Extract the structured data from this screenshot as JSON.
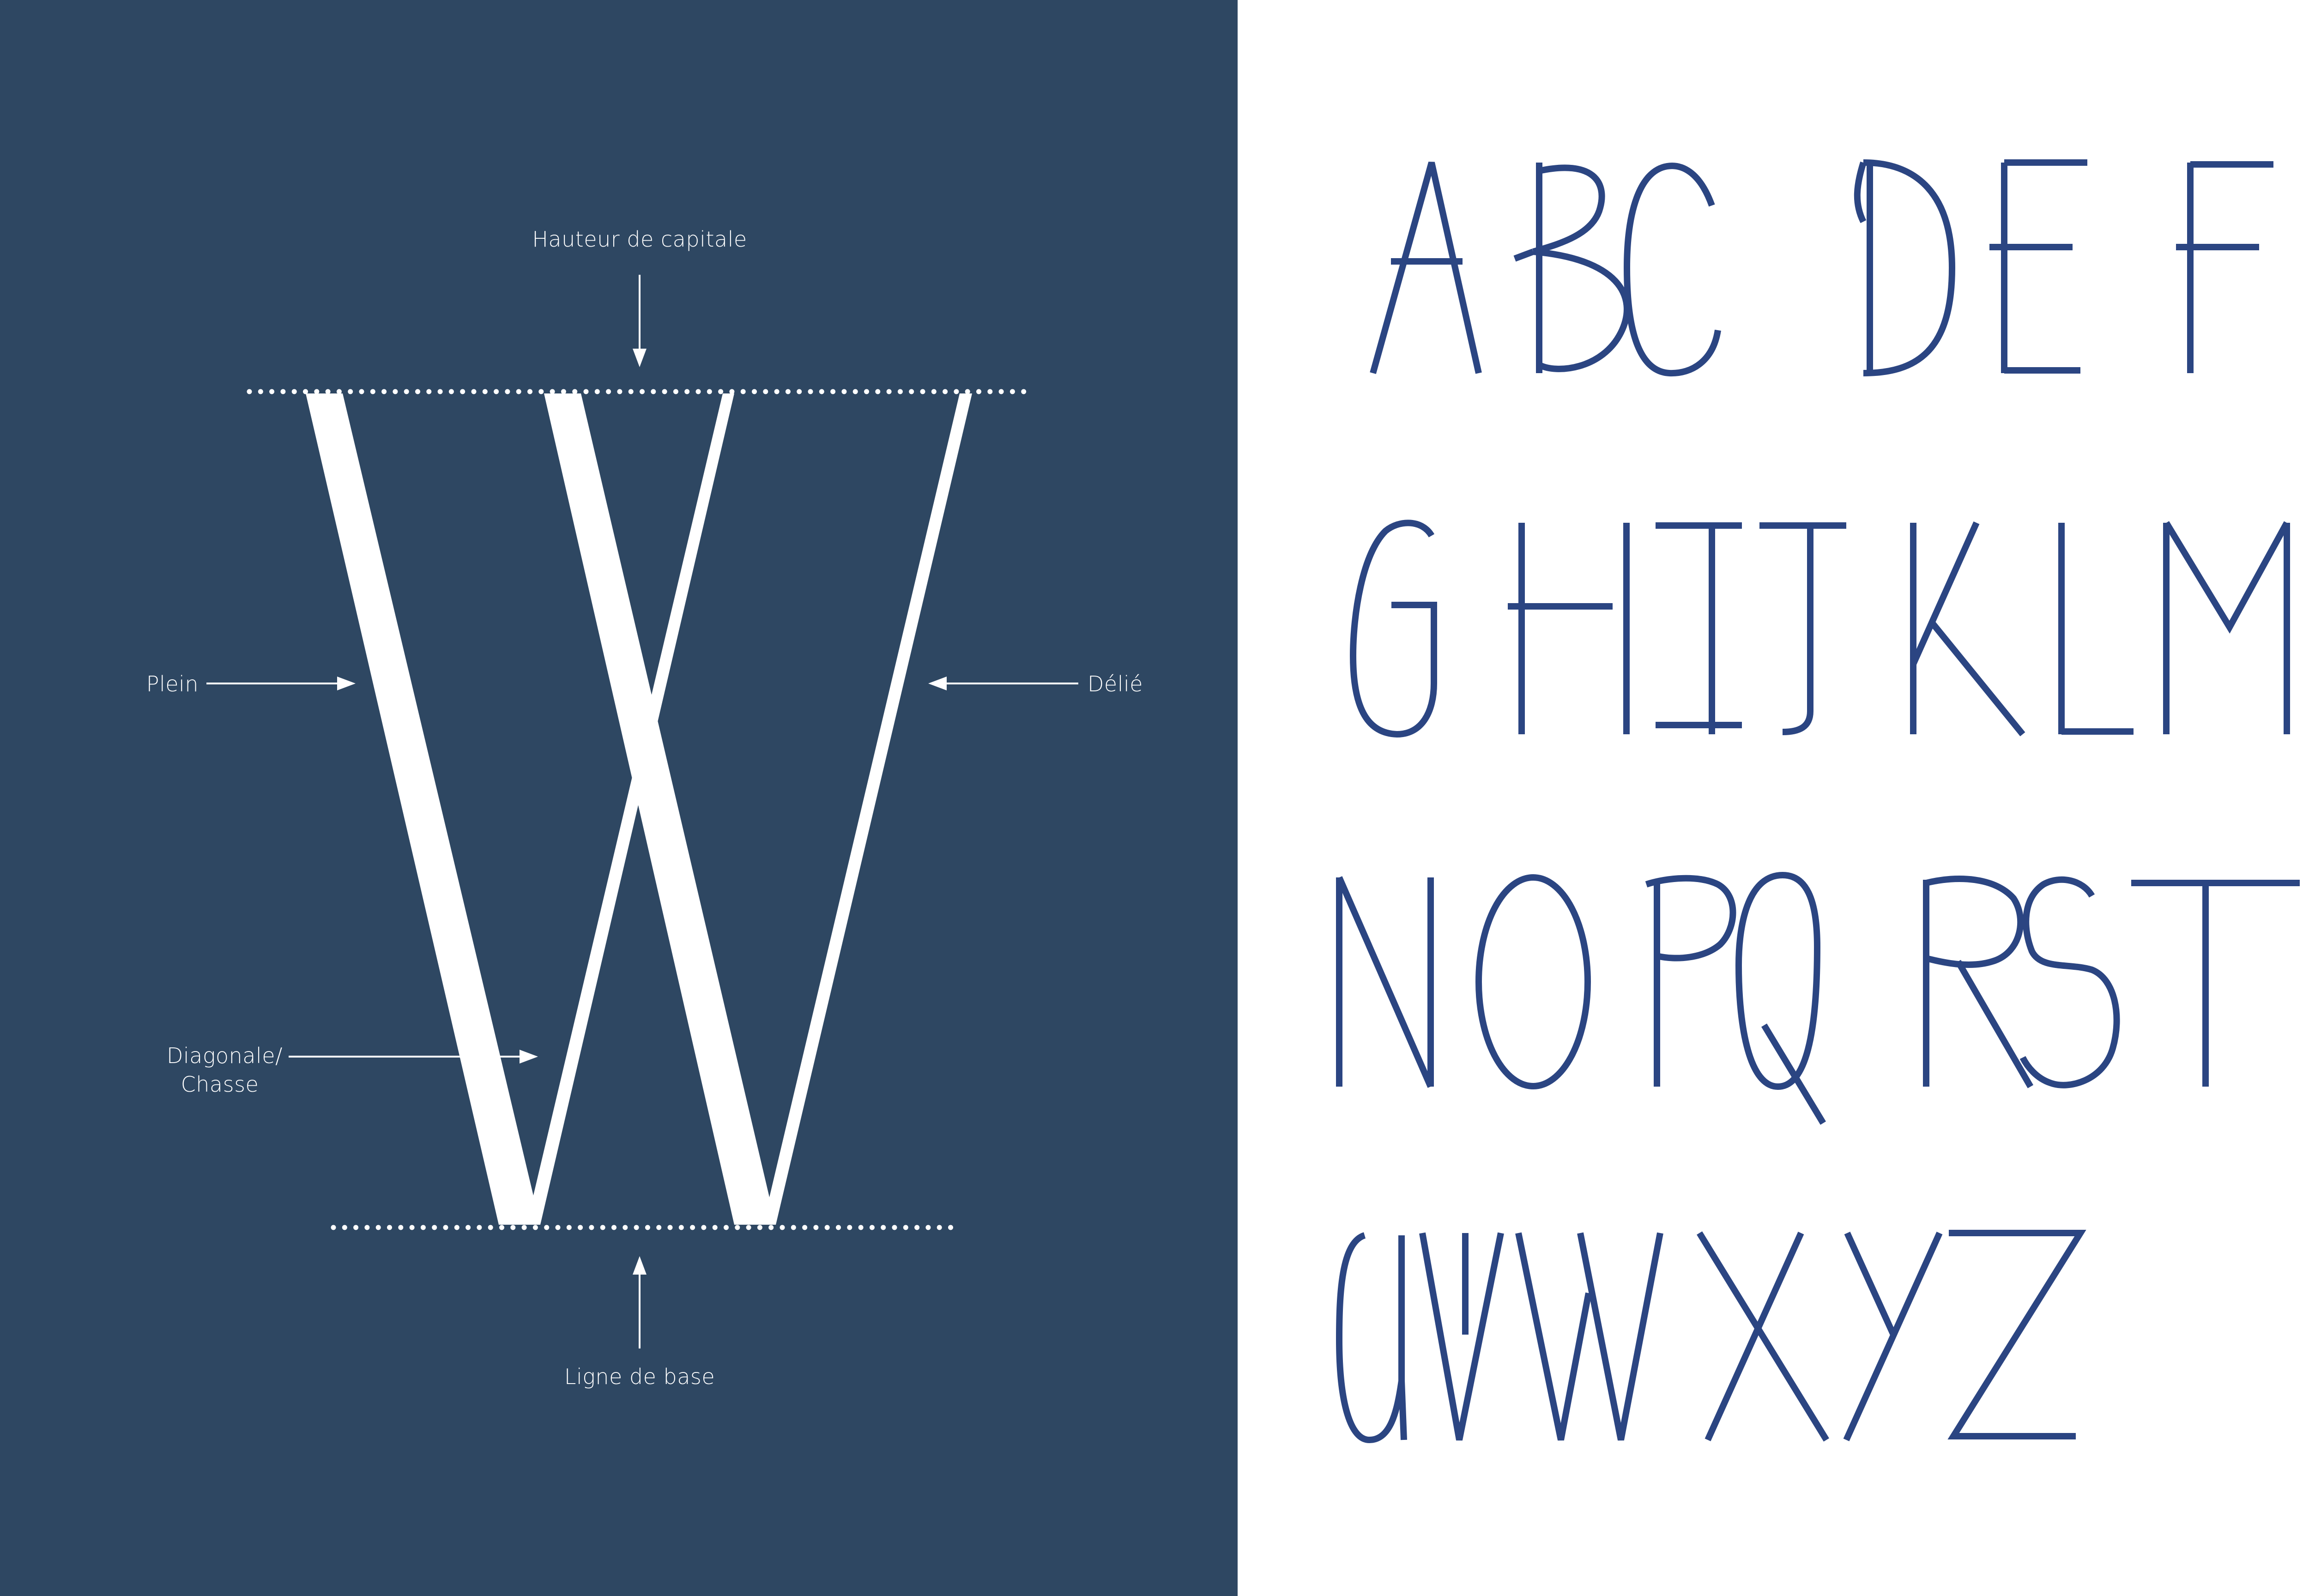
{
  "anatomy": {
    "glyph": "W",
    "labels": {
      "cap_height": "Hauteur de capitale",
      "thick_stroke": "Plein",
      "thin_stroke": "Délié",
      "diagonal_line1": "Diagonale/",
      "diagonal_line2": "Chasse",
      "baseline": "Ligne de base"
    }
  },
  "alphabet": {
    "rows": [
      [
        "A",
        "B",
        "C",
        "D",
        "E",
        "F"
      ],
      [
        "G",
        "H",
        "I",
        "J",
        "K",
        "L",
        "M"
      ],
      [
        "N",
        "O",
        "P",
        "Q",
        "R",
        "S",
        "T"
      ],
      [
        "U",
        "V",
        "W",
        "X",
        "Y",
        "Z"
      ]
    ]
  },
  "colors": {
    "panel_background": "#2e4762",
    "annotation": "#ffffff",
    "glyph_stroke": "#2b4582",
    "page_background": "#ffffff"
  }
}
